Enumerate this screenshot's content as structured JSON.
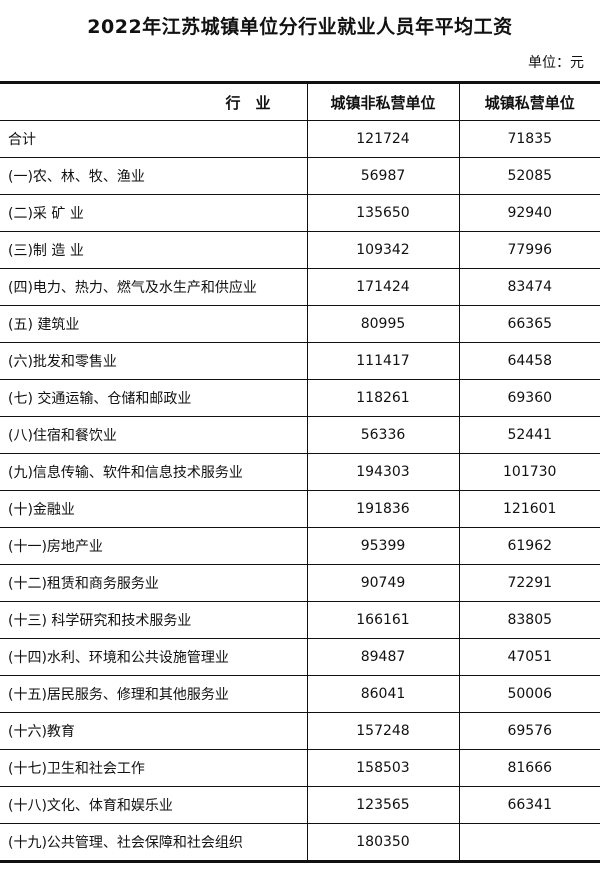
{
  "title": "2022年江苏城镇单位分行业就业人员年平均工资",
  "unit": "单位：元",
  "headers": [
    "行　业",
    "城镇非私营单位",
    "城镇私营单位"
  ],
  "rows": [
    [
      "合计",
      "121724",
      "71835"
    ],
    [
      "(一)农、林、牧、渔业",
      "56987",
      "52085"
    ],
    [
      "(二)采 矿 业",
      "135650",
      "92940"
    ],
    [
      "(三)制 造 业",
      "109342",
      "77996"
    ],
    [
      "(四)电力、热力、燃气及水生产和供应业",
      "171424",
      "83474"
    ],
    [
      "(五) 建筑业",
      "80995",
      "66365"
    ],
    [
      "(六)批发和零售业",
      "111417",
      "64458"
    ],
    [
      "(七) 交通运输、仓储和邮政业",
      "118261",
      "69360"
    ],
    [
      "(八)住宿和餐饮业",
      "56336",
      "52441"
    ],
    [
      "(九)信息传输、软件和信息技术服务业",
      "194303",
      "101730"
    ],
    [
      "(十)金融业",
      "191836",
      "121601"
    ],
    [
      "(十一)房地产业",
      "95399",
      "61962"
    ],
    [
      "(十二)租赁和商务服务业",
      "90749",
      "72291"
    ],
    [
      "(十三) 科学研究和技术服务业",
      "166161",
      "83805"
    ],
    [
      "(十四)水利、环境和公共设施管理业",
      "89487",
      "47051"
    ],
    [
      "(十五)居民服务、修理和其他服务业",
      "86041",
      "50006"
    ],
    [
      "(十六)教育",
      "157248",
      "69576"
    ],
    [
      "(十七)卫生和社会工作",
      "158503",
      "81666"
    ],
    [
      "(十八)文化、体育和娱乐业",
      "123565",
      "66341"
    ],
    [
      "(十九)公共管理、社会保障和社会组织",
      "180350",
      ""
    ]
  ]
}
